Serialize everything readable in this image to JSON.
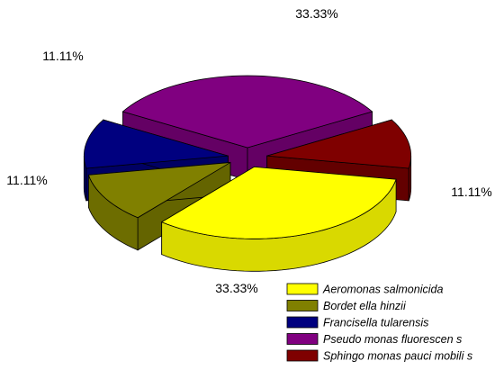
{
  "chart_data": {
    "type": "pie",
    "style": "3d-exploded",
    "title": "",
    "categories": [
      "Aeromonas salmonicida",
      "Bordetella hinzii",
      "Francisella tularensis",
      "Pseudomonas fluorescens",
      "Sphingomonas paucimobilis"
    ],
    "legend_labels": [
      "Aeromonas  salmonicida",
      "Bordet ella hinzii",
      "Francisella tularensis",
      "Pseudo monas  fluorescen s",
      "Sphingo monas  pauci mobili s"
    ],
    "values": [
      33.33,
      11.11,
      11.11,
      33.33,
      11.11
    ],
    "value_labels": [
      "33.33%",
      "11.11%",
      "11.11%",
      "33.33%",
      "11.11%"
    ],
    "colors": [
      "#FFFF00",
      "#808000",
      "#00007F",
      "#800080",
      "#7F0000"
    ],
    "legend_position": "bottom-right"
  }
}
